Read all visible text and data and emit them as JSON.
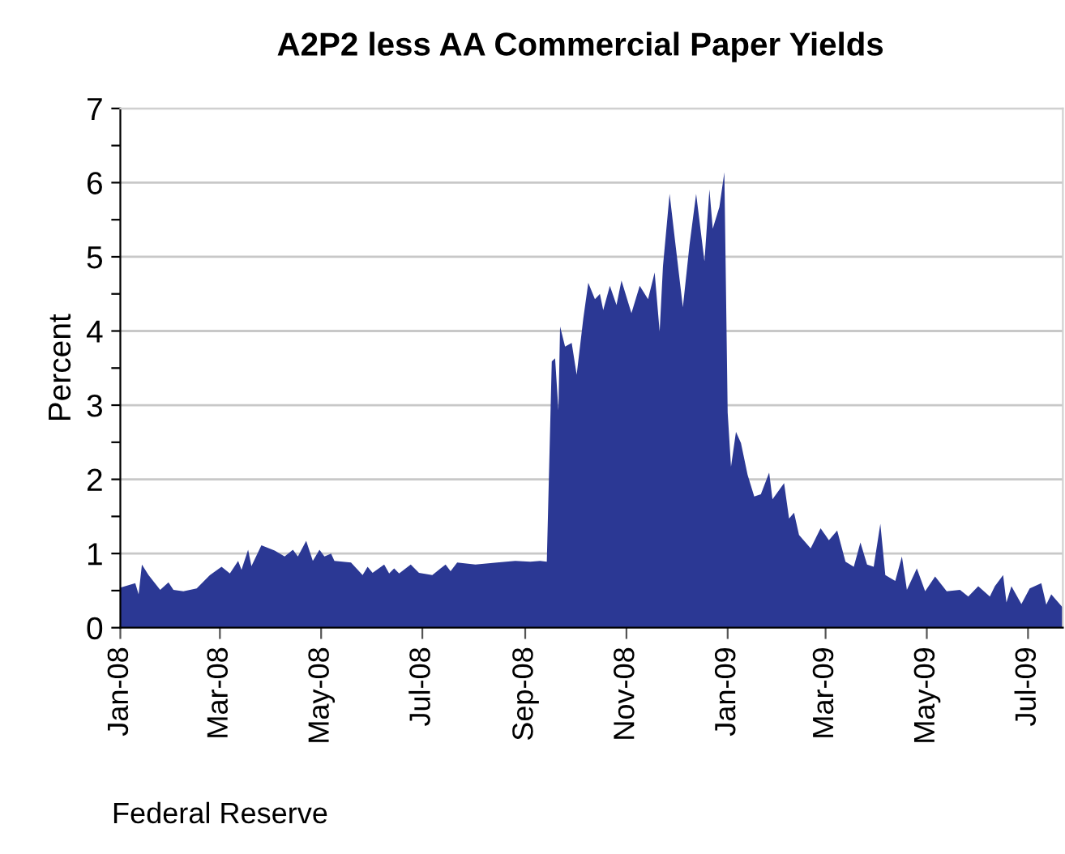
{
  "chart_data": {
    "type": "area",
    "title": "A2P2 less AA Commercial Paper Yields",
    "ylabel": "Percent",
    "annotations": [
      "Federal Reserve"
    ],
    "x": [
      "2008-01-01",
      "2008-01-10",
      "2008-01-12",
      "2008-01-14",
      "2008-01-18",
      "2008-01-25",
      "2008-01-30",
      "2008-02-02",
      "2008-02-08",
      "2008-02-16",
      "2008-02-24",
      "2008-03-02",
      "2008-03-07",
      "2008-03-12",
      "2008-03-14",
      "2008-03-18",
      "2008-03-20",
      "2008-03-26",
      "2008-04-03",
      "2008-04-09",
      "2008-04-14",
      "2008-04-17",
      "2008-04-22",
      "2008-04-26",
      "2008-04-30",
      "2008-05-03",
      "2008-05-07",
      "2008-05-09",
      "2008-05-19",
      "2008-05-26",
      "2008-05-29",
      "2008-06-01",
      "2008-06-08",
      "2008-06-11",
      "2008-06-14",
      "2008-06-17",
      "2008-06-24",
      "2008-06-29",
      "2008-07-07",
      "2008-07-12",
      "2008-07-15",
      "2008-07-18",
      "2008-07-22",
      "2008-08-02",
      "2008-08-15",
      "2008-08-26",
      "2008-09-04",
      "2008-09-10",
      "2008-09-14",
      "2008-09-17",
      "2008-09-19",
      "2008-09-21",
      "2008-09-22",
      "2008-09-25",
      "2008-09-29",
      "2008-10-02",
      "2008-10-06",
      "2008-10-09",
      "2008-10-13",
      "2008-10-16",
      "2008-10-18",
      "2008-10-22",
      "2008-10-26",
      "2008-10-29",
      "2008-11-04",
      "2008-11-09",
      "2008-11-14",
      "2008-11-18",
      "2008-11-21",
      "2008-11-23",
      "2008-11-27",
      "2008-11-30",
      "2008-12-05",
      "2008-12-09",
      "2008-12-13",
      "2008-12-18",
      "2008-12-21",
      "2008-12-23",
      "2008-12-27",
      "2008-12-30",
      "2009-01-01",
      "2009-01-03",
      "2009-01-06",
      "2009-01-09",
      "2009-01-13",
      "2009-01-17",
      "2009-01-21",
      "2009-01-26",
      "2009-01-28",
      "2009-02-04",
      "2009-02-07",
      "2009-02-10",
      "2009-02-13",
      "2009-02-20",
      "2009-02-26",
      "2009-03-03",
      "2009-03-08",
      "2009-03-13",
      "2009-03-18",
      "2009-03-22",
      "2009-03-26",
      "2009-03-30",
      "2009-04-03",
      "2009-04-06",
      "2009-04-12",
      "2009-04-16",
      "2009-04-19",
      "2009-04-25",
      "2009-04-30",
      "2009-05-06",
      "2009-05-13",
      "2009-05-21",
      "2009-05-26",
      "2009-06-01",
      "2009-06-08",
      "2009-06-11",
      "2009-06-16",
      "2009-06-18",
      "2009-06-21",
      "2009-06-27",
      "2009-07-02",
      "2009-07-09",
      "2009-07-12",
      "2009-07-15",
      "2009-07-22"
    ],
    "series": [
      {
        "color": "#2b3894",
        "values": [
          0.54,
          0.6,
          0.45,
          0.85,
          0.71,
          0.51,
          0.61,
          0.51,
          0.49,
          0.53,
          0.71,
          0.82,
          0.73,
          0.9,
          0.78,
          1.05,
          0.83,
          1.11,
          1.04,
          0.96,
          1.05,
          0.96,
          1.17,
          0.9,
          1.05,
          0.96,
          1.0,
          0.9,
          0.88,
          0.71,
          0.82,
          0.74,
          0.85,
          0.73,
          0.8,
          0.73,
          0.85,
          0.74,
          0.71,
          0.8,
          0.85,
          0.76,
          0.88,
          0.85,
          0.88,
          0.9,
          0.89,
          0.9,
          0.89,
          3.59,
          3.63,
          2.93,
          4.06,
          3.79,
          3.84,
          3.41,
          4.17,
          4.65,
          4.43,
          4.5,
          4.28,
          4.61,
          4.35,
          4.68,
          4.24,
          4.61,
          4.43,
          4.79,
          3.99,
          4.87,
          5.85,
          5.27,
          4.32,
          5.16,
          5.85,
          4.94,
          5.91,
          5.38,
          5.67,
          6.14,
          2.9,
          2.17,
          2.64,
          2.49,
          2.06,
          1.77,
          1.8,
          2.09,
          1.73,
          1.95,
          1.47,
          1.55,
          1.25,
          1.07,
          1.34,
          1.18,
          1.31,
          0.89,
          0.82,
          1.15,
          0.85,
          0.82,
          1.4,
          0.71,
          0.63,
          0.96,
          0.51,
          0.8,
          0.49,
          0.69,
          0.49,
          0.51,
          0.42,
          0.56,
          0.42,
          0.56,
          0.71,
          0.34,
          0.56,
          0.32,
          0.53,
          0.6,
          0.31,
          0.45,
          0.27
        ]
      }
    ],
    "xlim": [
      "2008-01-01",
      "2009-07-22"
    ],
    "xticks": [
      {
        "value": "2008-01-01",
        "label": "Jan-08"
      },
      {
        "value": "2008-03-01",
        "label": "Mar-08"
      },
      {
        "value": "2008-05-01",
        "label": "May-08"
      },
      {
        "value": "2008-07-01",
        "label": "Jul-08"
      },
      {
        "value": "2008-09-01",
        "label": "Sep-08"
      },
      {
        "value": "2008-11-01",
        "label": "Nov-08"
      },
      {
        "value": "2009-01-01",
        "label": "Jan-09"
      },
      {
        "value": "2009-03-01",
        "label": "Mar-09"
      },
      {
        "value": "2009-05-01",
        "label": "May-09"
      },
      {
        "value": "2009-07-01",
        "label": "Jul-09"
      }
    ],
    "ylim": [
      0,
      7
    ],
    "yticks": [
      0,
      {
        "value": 0.5,
        "label": null
      },
      1,
      {
        "value": 1.5,
        "label": null
      },
      2,
      {
        "value": 2.5,
        "label": null
      },
      3,
      {
        "value": 3.5,
        "label": null
      },
      4,
      {
        "value": 4.5,
        "label": null
      },
      5,
      {
        "value": 5.5,
        "label": null
      },
      6,
      {
        "value": 6.5,
        "label": null
      },
      7
    ],
    "grid": "y",
    "legend": false
  }
}
